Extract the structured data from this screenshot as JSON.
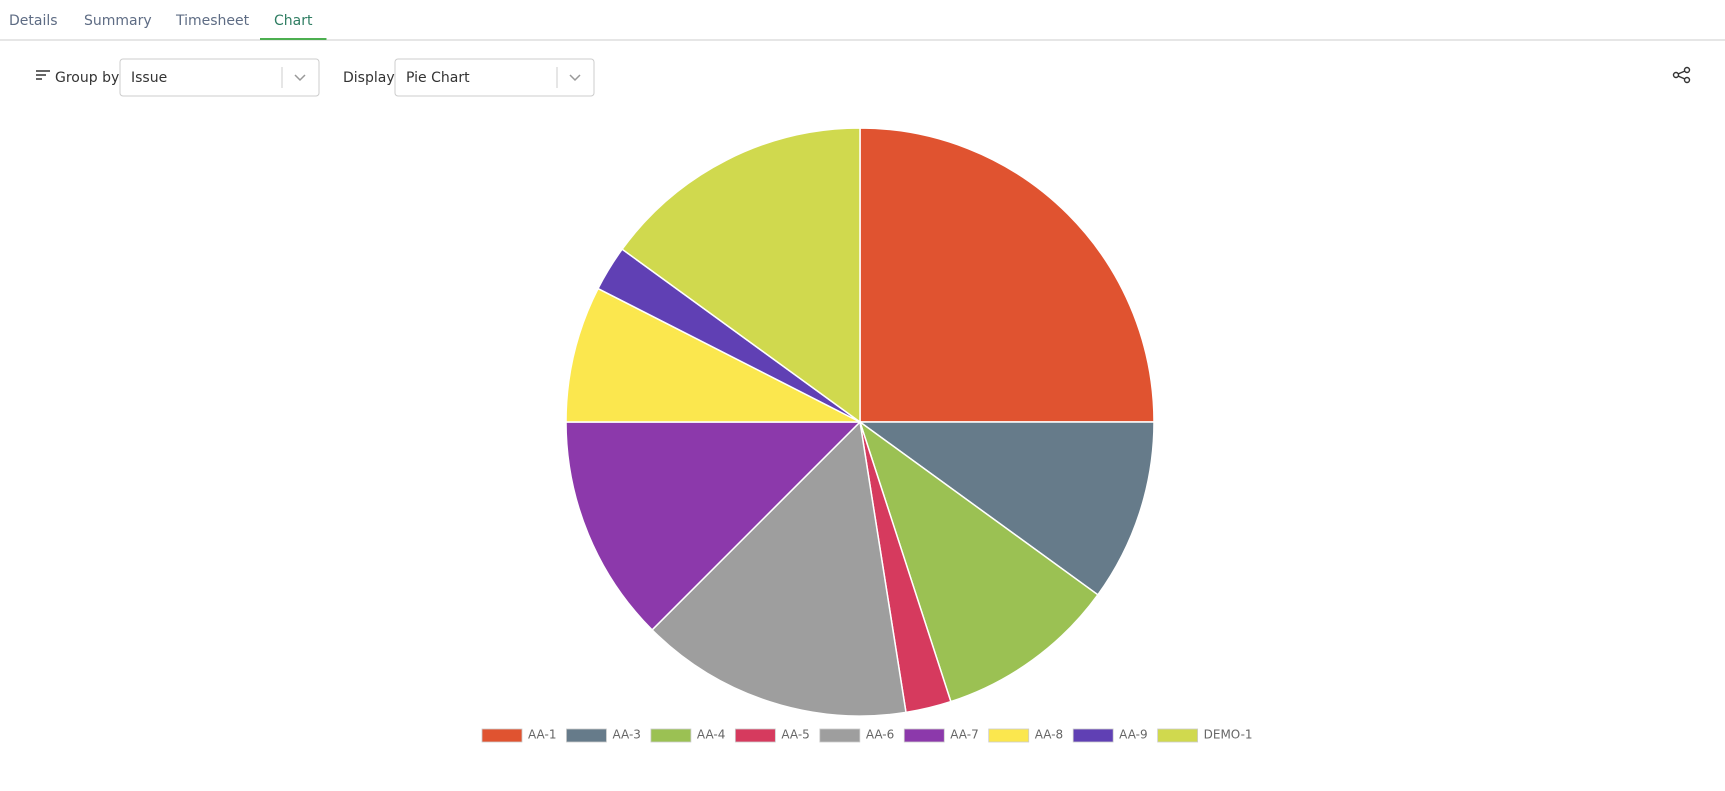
{
  "tabs": [
    {
      "label": "Details"
    },
    {
      "label": "Summary"
    },
    {
      "label": "Timesheet"
    },
    {
      "label": "Chart",
      "active": true
    }
  ],
  "controls": {
    "group_by": {
      "label": "Group by:",
      "value": "Issue"
    },
    "display": {
      "label": "Display:",
      "value": "Pie Chart"
    }
  },
  "chart_data": {
    "type": "pie",
    "categories": [
      "AA-1",
      "AA-3",
      "AA-4",
      "AA-5",
      "AA-6",
      "AA-7",
      "AA-8",
      "AA-9",
      "DEMO-1"
    ],
    "values": [
      25,
      10,
      10,
      2.5,
      15,
      12.5,
      7.5,
      2.5,
      15
    ],
    "colors": [
      "#e05330",
      "#667b8a",
      "#9bc153",
      "#d63a5e",
      "#9e9e9e",
      "#8c39ab",
      "#fbe74e",
      "#6040b4",
      "#d0d94e"
    ],
    "legend": "bottom"
  }
}
